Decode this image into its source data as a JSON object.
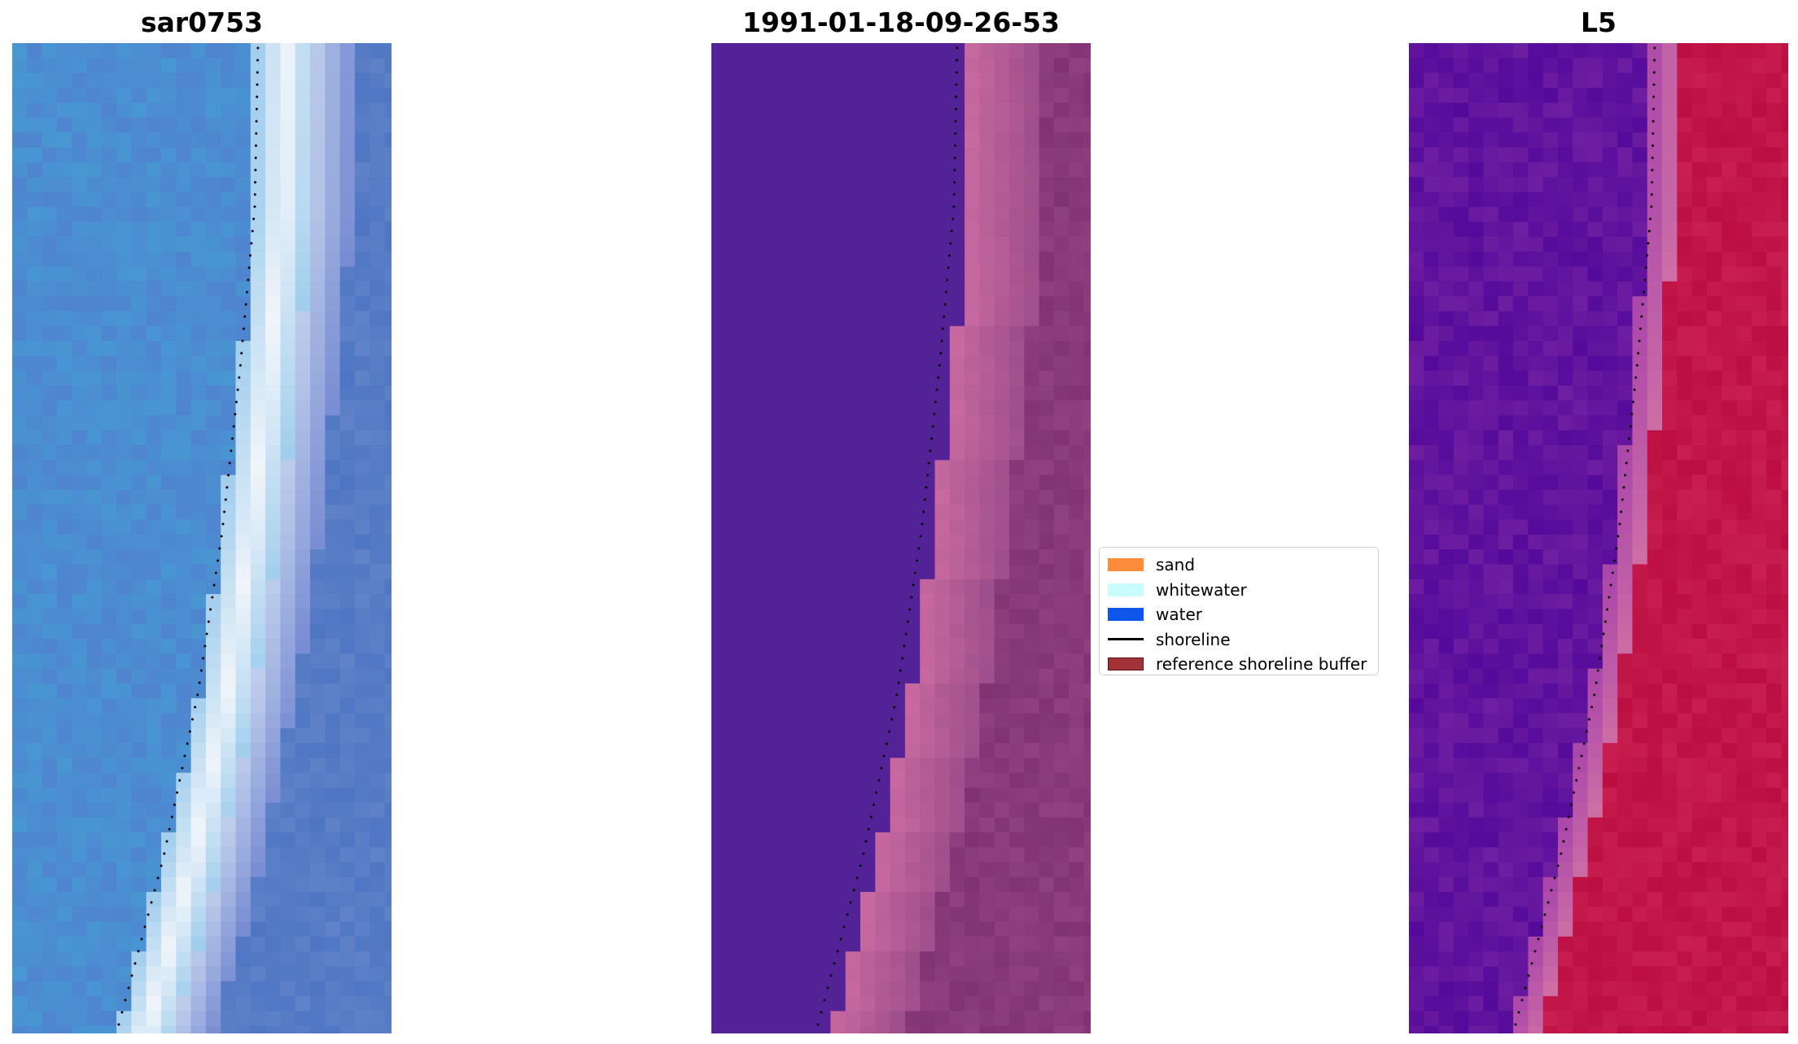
{
  "panels": [
    {
      "title": "sar0753"
    },
    {
      "title": "1991-01-18-09-26-53"
    },
    {
      "title": "L5"
    }
  ],
  "legend": {
    "items": [
      {
        "label": "sand",
        "color": "#ff8c3a",
        "kind": "patch"
      },
      {
        "label": "whitewater",
        "color": "#c9fdfc",
        "kind": "patch"
      },
      {
        "label": "water",
        "color": "#0f57ea",
        "kind": "patch"
      },
      {
        "label": "shoreline",
        "color": "#000000",
        "kind": "line"
      },
      {
        "label": "reference shoreline buffer",
        "color": "#a23237",
        "kind": "patch",
        "edge": "#5a1418"
      }
    ]
  }
}
